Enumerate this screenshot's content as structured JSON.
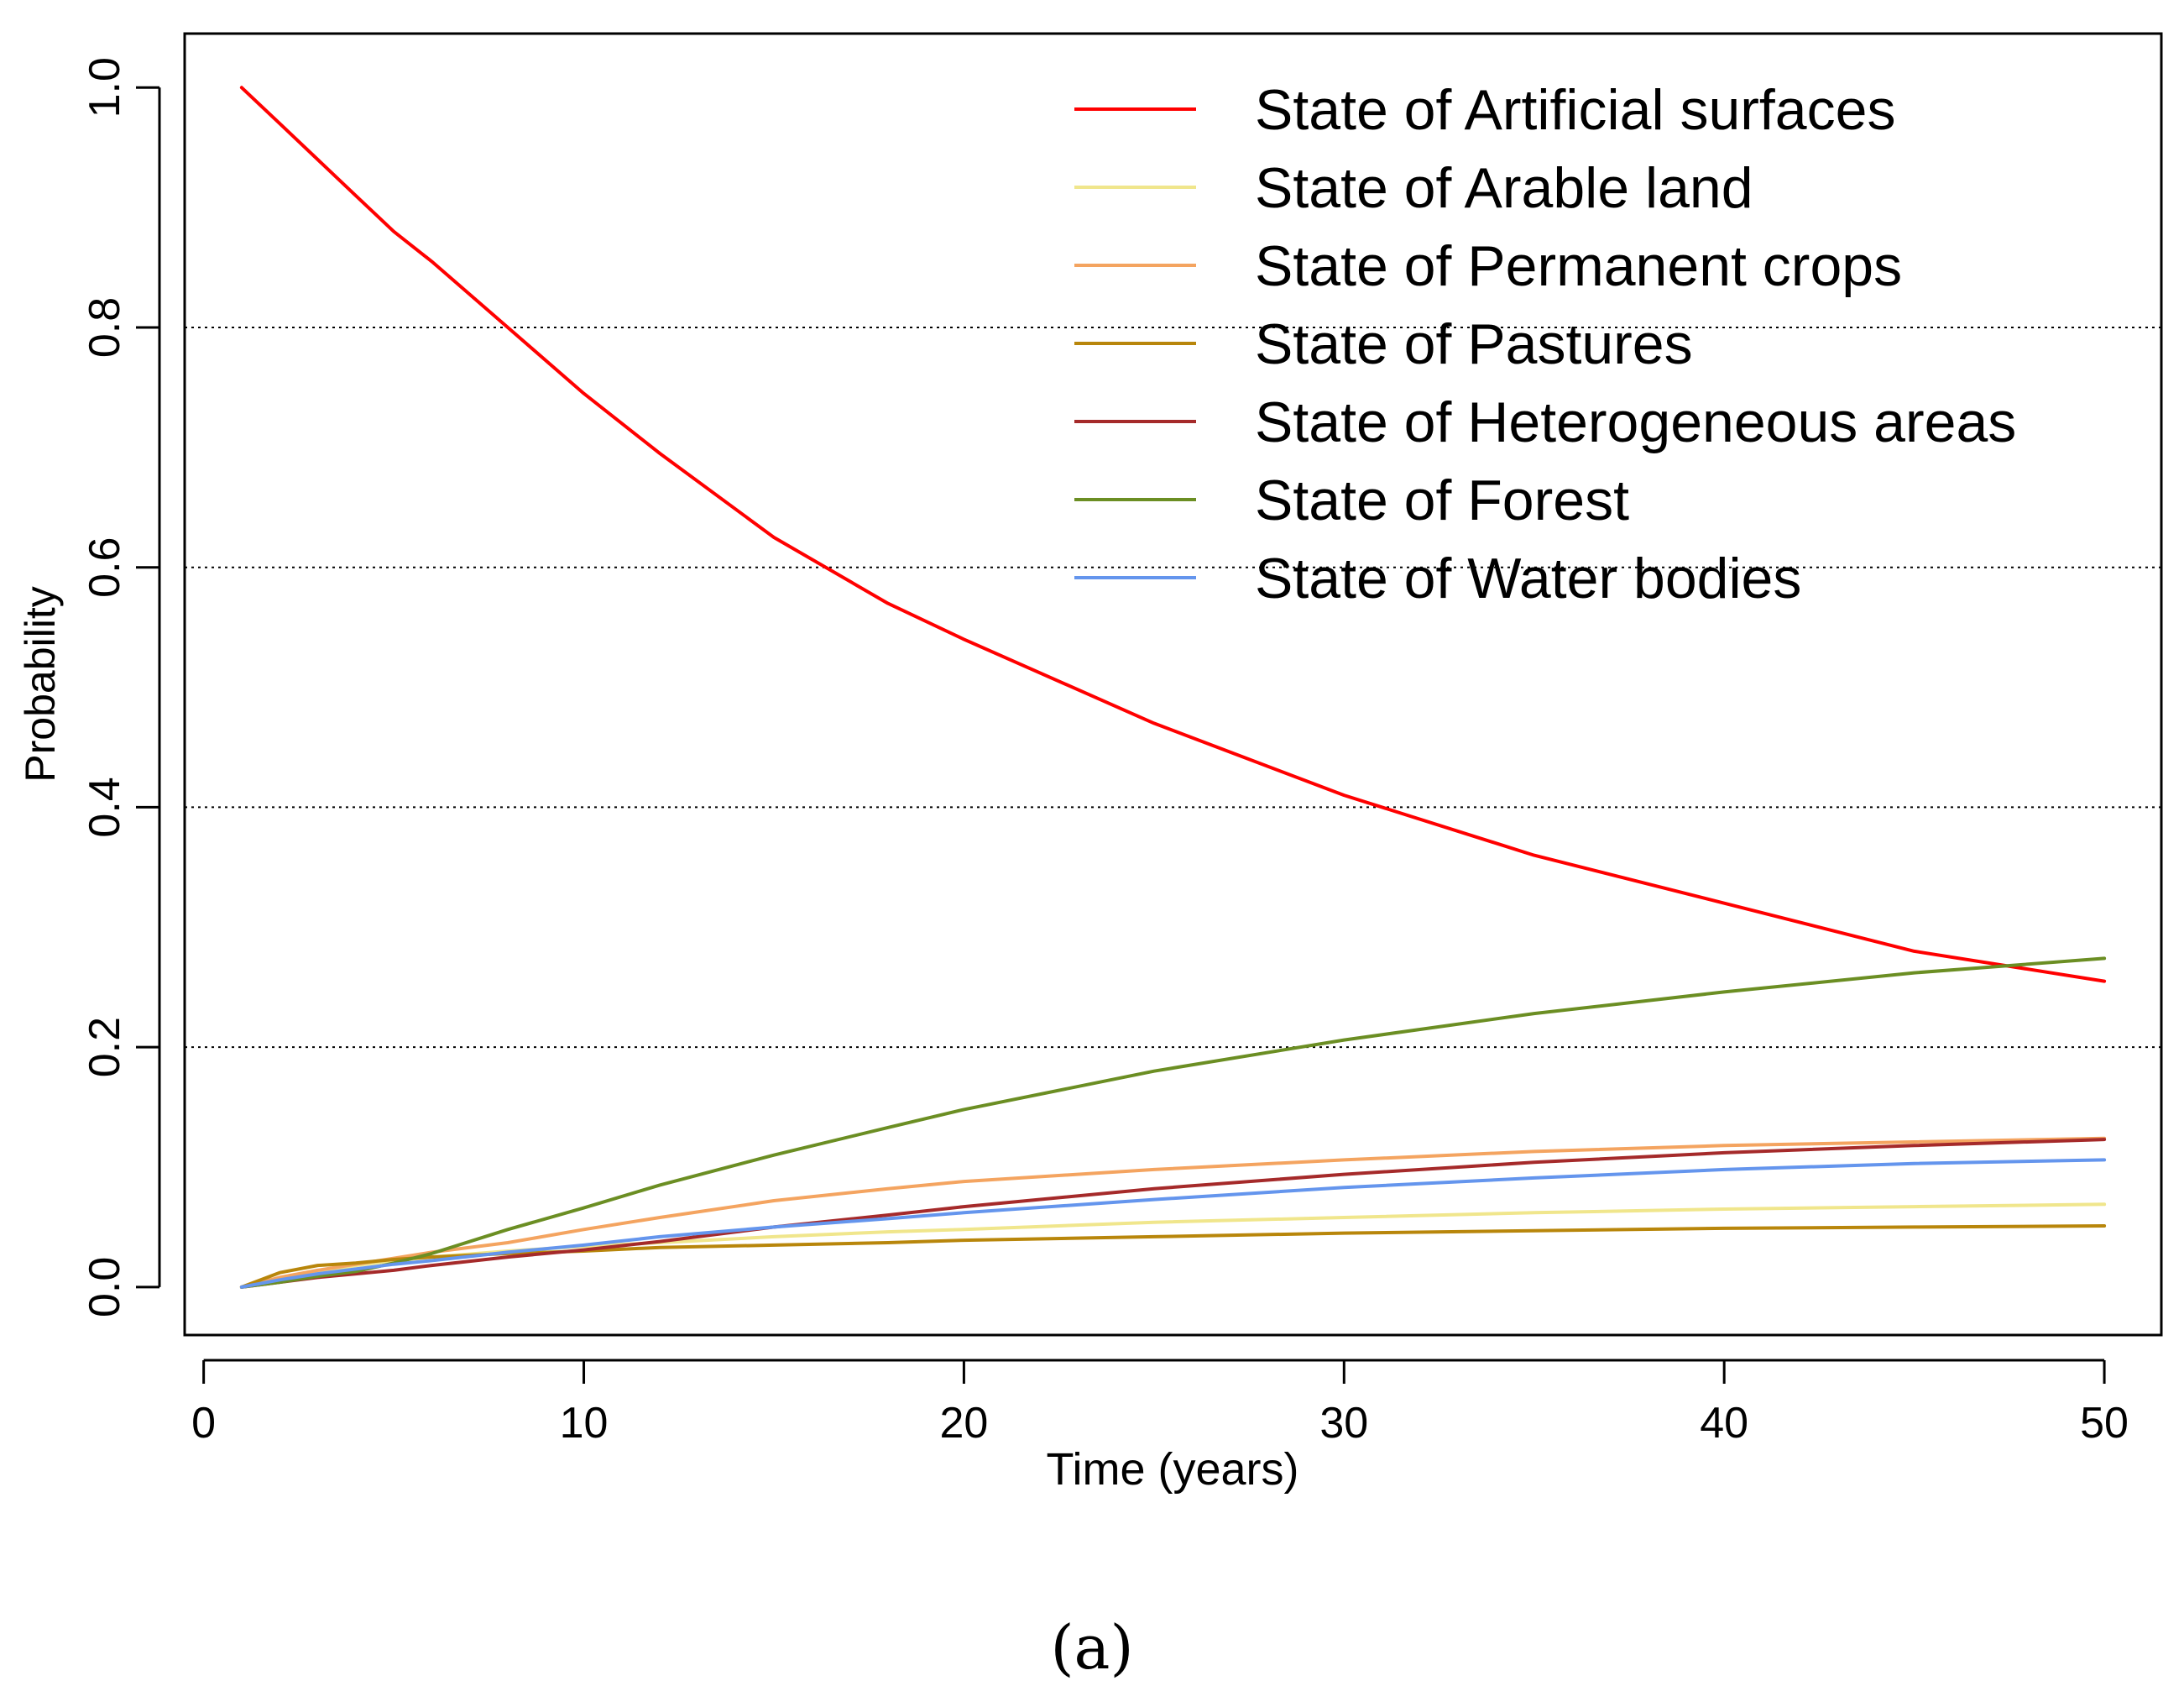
{
  "chart_data": {
    "type": "line",
    "xlabel": "Time (years)",
    "ylabel": "Probability",
    "xlim": [
      -0.5,
      51.5
    ],
    "ylim": [
      -0.04,
      1.045
    ],
    "xticks": [
      0,
      10,
      20,
      30,
      40,
      50
    ],
    "yticks": [
      0.0,
      0.2,
      0.4,
      0.6,
      0.8,
      1.0
    ],
    "ytick_labels": [
      "0.0",
      "0.2",
      "0.4",
      "0.6",
      "0.8",
      "1.0"
    ],
    "gridlines_y": [
      0.2,
      0.4,
      0.6,
      0.8
    ],
    "grid_style": "dotted",
    "legend_position": "top-right",
    "x": [
      1,
      2,
      3,
      4,
      5,
      6,
      8,
      10,
      12,
      15,
      18,
      20,
      25,
      30,
      35,
      40,
      45,
      50
    ],
    "series": [
      {
        "name": "State of Artificial surfaces",
        "color": "#ff0000",
        "values": [
          1.0,
          0.97,
          0.94,
          0.91,
          0.88,
          0.855,
          0.8,
          0.745,
          0.695,
          0.625,
          0.57,
          0.54,
          0.47,
          0.41,
          0.36,
          0.32,
          0.28,
          0.255
        ]
      },
      {
        "name": "State of Arable land",
        "color": "#f0e68c",
        "values": [
          0.0,
          0.007,
          0.013,
          0.018,
          0.022,
          0.025,
          0.03,
          0.034,
          0.037,
          0.042,
          0.046,
          0.048,
          0.054,
          0.058,
          0.062,
          0.065,
          0.067,
          0.069
        ]
      },
      {
        "name": "State of Permanent crops",
        "color": "#f4a460",
        "values": [
          0.0,
          0.008,
          0.014,
          0.019,
          0.024,
          0.029,
          0.037,
          0.048,
          0.058,
          0.072,
          0.082,
          0.088,
          0.098,
          0.106,
          0.113,
          0.118,
          0.121,
          0.124
        ]
      },
      {
        "name": "State of Pastures",
        "color": "#b8860b",
        "values": [
          0.0,
          0.012,
          0.018,
          0.02,
          0.023,
          0.025,
          0.028,
          0.03,
          0.033,
          0.035,
          0.037,
          0.039,
          0.042,
          0.045,
          0.047,
          0.049,
          0.05,
          0.051
        ]
      },
      {
        "name": "State of Heterogeneous areas",
        "color": "#a52a2a",
        "values": [
          0.0,
          0.004,
          0.008,
          0.011,
          0.014,
          0.018,
          0.025,
          0.031,
          0.038,
          0.05,
          0.06,
          0.067,
          0.082,
          0.094,
          0.104,
          0.112,
          0.118,
          0.123
        ]
      },
      {
        "name": "State of Forest",
        "color": "#6b8e23",
        "values": [
          0.0,
          0.004,
          0.009,
          0.013,
          0.02,
          0.028,
          0.048,
          0.066,
          0.085,
          0.11,
          0.133,
          0.148,
          0.18,
          0.206,
          0.228,
          0.246,
          0.262,
          0.274
        ]
      },
      {
        "name": "State of Water bodies",
        "color": "#6495ed",
        "values": [
          0.0,
          0.006,
          0.011,
          0.015,
          0.019,
          0.022,
          0.029,
          0.035,
          0.042,
          0.05,
          0.057,
          0.062,
          0.073,
          0.083,
          0.091,
          0.098,
          0.103,
          0.106
        ]
      }
    ]
  },
  "caption": "(a)"
}
